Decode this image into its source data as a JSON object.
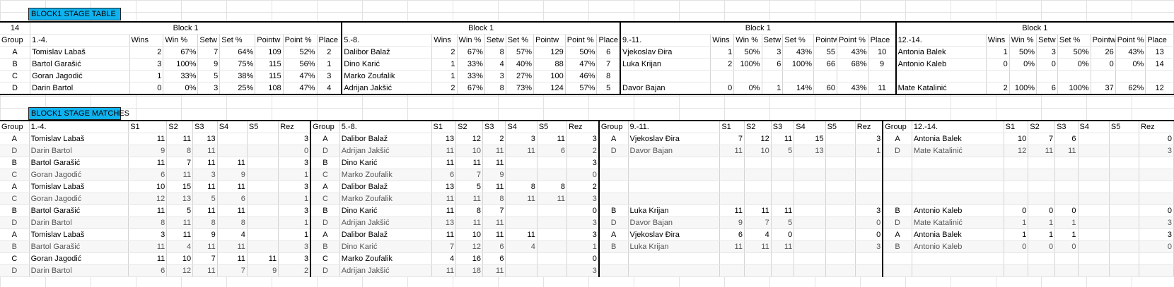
{
  "stage_table": {
    "title": "BLOCK1 STAGE TABLE",
    "corner_value": "14",
    "group_header": "Group",
    "column_headers": [
      "Wins",
      "Win %",
      "Setw",
      "Set %",
      "Pointw",
      "Point %",
      "Place"
    ],
    "blocks": [
      {
        "block_label": "Block 1",
        "range_label": "1.-4.",
        "rows": [
          {
            "group": "A",
            "name": "Tomislav Labaš",
            "wins": "2",
            "win_pct": "67%",
            "setw": "7",
            "set_pct": "64%",
            "pointw": "109",
            "point_pct": "52%",
            "place": "2"
          },
          {
            "group": "B",
            "name": "Bartol Garašić",
            "wins": "3",
            "win_pct": "100%",
            "setw": "9",
            "set_pct": "75%",
            "pointw": "115",
            "point_pct": "56%",
            "place": "1"
          },
          {
            "group": "C",
            "name": "Goran Jagodić",
            "wins": "1",
            "win_pct": "33%",
            "setw": "5",
            "set_pct": "38%",
            "pointw": "115",
            "point_pct": "47%",
            "place": "3"
          },
          {
            "group": "D",
            "name": "Darin Bartol",
            "wins": "0",
            "win_pct": "0%",
            "setw": "3",
            "set_pct": "25%",
            "pointw": "108",
            "point_pct": "47%",
            "place": "4"
          }
        ]
      },
      {
        "block_label": "Block 1",
        "range_label": "5.-8.",
        "rows": [
          {
            "group": "",
            "name": "Dalibor Balaž",
            "wins": "2",
            "win_pct": "67%",
            "setw": "8",
            "set_pct": "57%",
            "pointw": "129",
            "point_pct": "50%",
            "place": "6"
          },
          {
            "group": "",
            "name": "Dino Karić",
            "wins": "1",
            "win_pct": "33%",
            "setw": "4",
            "set_pct": "40%",
            "pointw": "88",
            "point_pct": "47%",
            "place": "7"
          },
          {
            "group": "",
            "name": "Marko Zoufalik",
            "wins": "1",
            "win_pct": "33%",
            "setw": "3",
            "set_pct": "27%",
            "pointw": "100",
            "point_pct": "46%",
            "place": "8"
          },
          {
            "group": "",
            "name": "Adrijan Jakšić",
            "wins": "2",
            "win_pct": "67%",
            "setw": "8",
            "set_pct": "73%",
            "pointw": "124",
            "point_pct": "57%",
            "place": "5"
          }
        ]
      },
      {
        "block_label": "Block 1",
        "range_label": "9.-11.",
        "rows": [
          {
            "group": "",
            "name": "Vjekoslav Đira",
            "wins": "1",
            "win_pct": "50%",
            "setw": "3",
            "set_pct": "43%",
            "pointw": "55",
            "point_pct": "43%",
            "place": "10"
          },
          {
            "group": "",
            "name": "Luka Krijan",
            "wins": "2",
            "win_pct": "100%",
            "setw": "6",
            "set_pct": "100%",
            "pointw": "66",
            "point_pct": "68%",
            "place": "9"
          },
          {
            "group": "",
            "name": "",
            "wins": "",
            "win_pct": "",
            "setw": "",
            "set_pct": "",
            "pointw": "",
            "point_pct": "",
            "place": ""
          },
          {
            "group": "",
            "name": "Davor Bajan",
            "wins": "0",
            "win_pct": "0%",
            "setw": "1",
            "set_pct": "14%",
            "pointw": "60",
            "point_pct": "43%",
            "place": "11"
          }
        ]
      },
      {
        "block_label": "Block 1",
        "range_label": "12.-14.",
        "rows": [
          {
            "group": "",
            "name": "Antonia Balek",
            "wins": "1",
            "win_pct": "50%",
            "setw": "3",
            "set_pct": "50%",
            "pointw": "26",
            "point_pct": "43%",
            "place": "13"
          },
          {
            "group": "",
            "name": "Antonio Kaleb",
            "wins": "0",
            "win_pct": "0%",
            "setw": "0",
            "set_pct": "0%",
            "pointw": "0",
            "point_pct": "0%",
            "place": "14"
          },
          {
            "group": "",
            "name": "",
            "wins": "",
            "win_pct": "",
            "setw": "",
            "set_pct": "",
            "pointw": "",
            "point_pct": "",
            "place": ""
          },
          {
            "group": "",
            "name": "Mate Katalinić",
            "wins": "2",
            "win_pct": "100%",
            "setw": "6",
            "set_pct": "100%",
            "pointw": "37",
            "point_pct": "62%",
            "place": "12"
          }
        ]
      }
    ]
  },
  "stage_matches": {
    "title": "BLOCK1 STAGE MATCHES",
    "group_header": "Group",
    "column_headers": [
      "S1",
      "S2",
      "S3",
      "S4",
      "S5",
      "Rez"
    ],
    "blocks": [
      {
        "range_label": "1.-4.",
        "rows": [
          {
            "group": "A",
            "name": "Tomislav Labaš",
            "s": [
              "11",
              "11",
              "13",
              "",
              ""
            ],
            "rez": "3"
          },
          {
            "group": "D",
            "name": "Darin Bartol",
            "s": [
              "9",
              "8",
              "11",
              "",
              ""
            ],
            "rez": "0"
          },
          {
            "group": "B",
            "name": "Bartol Garašić",
            "s": [
              "11",
              "7",
              "11",
              "11",
              ""
            ],
            "rez": "3"
          },
          {
            "group": "C",
            "name": "Goran Jagodić",
            "s": [
              "6",
              "11",
              "3",
              "9",
              ""
            ],
            "rez": "1"
          },
          {
            "group": "A",
            "name": "Tomislav Labaš",
            "s": [
              "10",
              "15",
              "11",
              "11",
              ""
            ],
            "rez": "3"
          },
          {
            "group": "C",
            "name": "Goran Jagodić",
            "s": [
              "12",
              "13",
              "5",
              "6",
              ""
            ],
            "rez": "1"
          },
          {
            "group": "B",
            "name": "Bartol Garašić",
            "s": [
              "11",
              "5",
              "11",
              "11",
              ""
            ],
            "rez": "3"
          },
          {
            "group": "D",
            "name": "Darin Bartol",
            "s": [
              "8",
              "11",
              "8",
              "8",
              ""
            ],
            "rez": "1"
          },
          {
            "group": "A",
            "name": "Tomislav Labaš",
            "s": [
              "3",
              "11",
              "9",
              "4",
              ""
            ],
            "rez": "1"
          },
          {
            "group": "B",
            "name": "Bartol Garašić",
            "s": [
              "11",
              "4",
              "11",
              "11",
              ""
            ],
            "rez": "3"
          },
          {
            "group": "C",
            "name": "Goran Jagodić",
            "s": [
              "11",
              "10",
              "7",
              "11",
              "11"
            ],
            "rez": "3"
          },
          {
            "group": "D",
            "name": "Darin Bartol",
            "s": [
              "6",
              "12",
              "11",
              "7",
              "9"
            ],
            "rez": "2"
          }
        ]
      },
      {
        "range_label": "5.-8.",
        "rows": [
          {
            "group": "A",
            "name": "Dalibor Balaž",
            "s": [
              "13",
              "12",
              "2",
              "3",
              "11"
            ],
            "rez": "3"
          },
          {
            "group": "D",
            "name": "Adrijan Jakšić",
            "s": [
              "11",
              "10",
              "11",
              "11",
              "6"
            ],
            "rez": "2"
          },
          {
            "group": "B",
            "name": "Dino Karić",
            "s": [
              "11",
              "11",
              "11",
              "",
              ""
            ],
            "rez": "3"
          },
          {
            "group": "C",
            "name": "Marko Zoufalik",
            "s": [
              "6",
              "7",
              "9",
              "",
              ""
            ],
            "rez": "0"
          },
          {
            "group": "A",
            "name": "Dalibor Balaž",
            "s": [
              "13",
              "5",
              "11",
              "8",
              "8"
            ],
            "rez": "2"
          },
          {
            "group": "C",
            "name": "Marko Zoufalik",
            "s": [
              "11",
              "11",
              "8",
              "11",
              "11"
            ],
            "rez": "3"
          },
          {
            "group": "B",
            "name": "Dino Karić",
            "s": [
              "11",
              "8",
              "7",
              "",
              ""
            ],
            "rez": "0"
          },
          {
            "group": "D",
            "name": "Adrijan Jakšić",
            "s": [
              "13",
              "11",
              "11",
              "",
              ""
            ],
            "rez": "3"
          },
          {
            "group": "A",
            "name": "Dalibor Balaž",
            "s": [
              "11",
              "10",
              "11",
              "11",
              ""
            ],
            "rez": "3"
          },
          {
            "group": "B",
            "name": "Dino Karić",
            "s": [
              "7",
              "12",
              "6",
              "4",
              ""
            ],
            "rez": "1"
          },
          {
            "group": "C",
            "name": "Marko Zoufalik",
            "s": [
              "4",
              "16",
              "6",
              "",
              ""
            ],
            "rez": "0"
          },
          {
            "group": "D",
            "name": "Adrijan Jakšić",
            "s": [
              "11",
              "18",
              "11",
              "",
              ""
            ],
            "rez": "3"
          }
        ]
      },
      {
        "range_label": "9.-11.",
        "rows": [
          {
            "group": "A",
            "name": "Vjekoslav Đira",
            "s": [
              "7",
              "12",
              "11",
              "15",
              ""
            ],
            "rez": "3"
          },
          {
            "group": "D",
            "name": "Davor Bajan",
            "s": [
              "11",
              "10",
              "5",
              "13",
              ""
            ],
            "rez": "1"
          },
          {
            "group": "",
            "name": "",
            "s": [
              "",
              "",
              "",
              "",
              ""
            ],
            "rez": ""
          },
          {
            "group": "",
            "name": "",
            "s": [
              "",
              "",
              "",
              "",
              ""
            ],
            "rez": ""
          },
          {
            "group": "",
            "name": "",
            "s": [
              "",
              "",
              "",
              "",
              ""
            ],
            "rez": ""
          },
          {
            "group": "",
            "name": "",
            "s": [
              "",
              "",
              "",
              "",
              ""
            ],
            "rez": ""
          },
          {
            "group": "B",
            "name": "Luka Krijan",
            "s": [
              "11",
              "11",
              "11",
              "",
              ""
            ],
            "rez": "3"
          },
          {
            "group": "D",
            "name": "Davor Bajan",
            "s": [
              "9",
              "7",
              "5",
              "",
              ""
            ],
            "rez": "0"
          },
          {
            "group": "A",
            "name": "Vjekoslav Đira",
            "s": [
              "6",
              "4",
              "0",
              "",
              ""
            ],
            "rez": "0"
          },
          {
            "group": "B",
            "name": "Luka Krijan",
            "s": [
              "11",
              "11",
              "11",
              "",
              ""
            ],
            "rez": "3"
          },
          {
            "group": "",
            "name": "",
            "s": [
              "",
              "",
              "",
              "",
              ""
            ],
            "rez": ""
          },
          {
            "group": "",
            "name": "",
            "s": [
              "",
              "",
              "",
              "",
              ""
            ],
            "rez": ""
          }
        ]
      },
      {
        "range_label": "12.-14.",
        "rows": [
          {
            "group": "A",
            "name": "Antonia Balek",
            "s": [
              "10",
              "7",
              "6",
              "",
              ""
            ],
            "rez": "0"
          },
          {
            "group": "D",
            "name": "Mate Katalinić",
            "s": [
              "12",
              "11",
              "11",
              "",
              ""
            ],
            "rez": "3"
          },
          {
            "group": "",
            "name": "",
            "s": [
              "",
              "",
              "",
              "",
              ""
            ],
            "rez": ""
          },
          {
            "group": "",
            "name": "",
            "s": [
              "",
              "",
              "",
              "",
              ""
            ],
            "rez": ""
          },
          {
            "group": "",
            "name": "",
            "s": [
              "",
              "",
              "",
              "",
              ""
            ],
            "rez": ""
          },
          {
            "group": "",
            "name": "",
            "s": [
              "",
              "",
              "",
              "",
              ""
            ],
            "rez": ""
          },
          {
            "group": "B",
            "name": "Antonio Kaleb",
            "s": [
              "0",
              "0",
              "0",
              "",
              ""
            ],
            "rez": "0"
          },
          {
            "group": "D",
            "name": "Mate Katalinić",
            "s": [
              "1",
              "1",
              "1",
              "",
              ""
            ],
            "rez": "3"
          },
          {
            "group": "A",
            "name": "Antonia Balek",
            "s": [
              "1",
              "1",
              "1",
              "",
              ""
            ],
            "rez": "3"
          },
          {
            "group": "B",
            "name": "Antonio Kaleb",
            "s": [
              "0",
              "0",
              "0",
              "",
              ""
            ],
            "rez": "0"
          },
          {
            "group": "",
            "name": "",
            "s": [
              "",
              "",
              "",
              "",
              ""
            ],
            "rez": ""
          },
          {
            "group": "",
            "name": "",
            "s": [
              "",
              "",
              "",
              "",
              ""
            ],
            "rez": ""
          }
        ]
      }
    ]
  },
  "colors": {
    "header_fill": "#0fb2ee",
    "gridline": "#e2e2e2",
    "border": "#000000"
  }
}
